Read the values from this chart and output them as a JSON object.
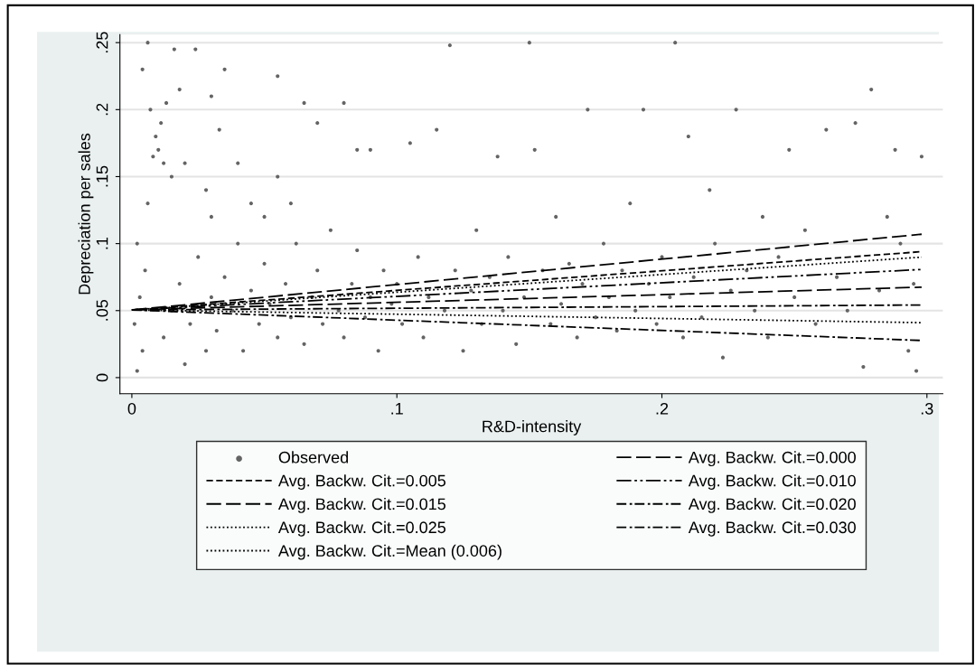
{
  "chart_data": {
    "type": "scatter",
    "xlabel": "R&D-intensity",
    "ylabel": "Depreciation per sales",
    "xlim": [
      -0.0045,
      0.306
    ],
    "ylim": [
      -0.012,
      0.256
    ],
    "xticks": [
      {
        "value": 0,
        "label": "0"
      },
      {
        "value": 0.1,
        "label": ".1"
      },
      {
        "value": 0.2,
        "label": ".2"
      },
      {
        "value": 0.3,
        "label": ".3"
      }
    ],
    "yticks": [
      {
        "value": 0,
        "label": "0"
      },
      {
        "value": 0.05,
        "label": ".05"
      },
      {
        "value": 0.1,
        "label": ".1"
      },
      {
        "value": 0.15,
        "label": ".15"
      },
      {
        "value": 0.2,
        "label": ".2"
      },
      {
        "value": 0.25,
        "label": ".25"
      }
    ],
    "grid": "y",
    "legend": "bottom",
    "series": [
      {
        "name": "Observed",
        "type": "scatter",
        "color": "#646464",
        "marker": "circle",
        "x": [
          0.002,
          0.004,
          0.001,
          0.003,
          0.005,
          0.002,
          0.006,
          0.008,
          0.01,
          0.012,
          0.009,
          0.011,
          0.007,
          0.004,
          0.006,
          0.013,
          0.015,
          0.018,
          0.02,
          0.016,
          0.024,
          0.028,
          0.03,
          0.033,
          0.03,
          0.012,
          0.015,
          0.018,
          0.02,
          0.022,
          0.025,
          0.028,
          0.03,
          0.032,
          0.035,
          0.038,
          0.04,
          0.042,
          0.045,
          0.048,
          0.05,
          0.052,
          0.055,
          0.058,
          0.06,
          0.062,
          0.065,
          0.068,
          0.07,
          0.072,
          0.075,
          0.078,
          0.08,
          0.083,
          0.085,
          0.088,
          0.09,
          0.093,
          0.095,
          0.098,
          0.045,
          0.05,
          0.055,
          0.06,
          0.065,
          0.07,
          0.04,
          0.035,
          0.055,
          0.08,
          0.085,
          0.09,
          0.1,
          0.102,
          0.105,
          0.108,
          0.11,
          0.112,
          0.115,
          0.118,
          0.12,
          0.122,
          0.125,
          0.128,
          0.13,
          0.132,
          0.135,
          0.138,
          0.14,
          0.142,
          0.145,
          0.148,
          0.15,
          0.152,
          0.155,
          0.158,
          0.16,
          0.162,
          0.165,
          0.168,
          0.17,
          0.172,
          0.175,
          0.178,
          0.18,
          0.183,
          0.185,
          0.188,
          0.19,
          0.193,
          0.195,
          0.198,
          0.2,
          0.203,
          0.205,
          0.208,
          0.21,
          0.212,
          0.215,
          0.218,
          0.22,
          0.223,
          0.226,
          0.228,
          0.232,
          0.235,
          0.238,
          0.24,
          0.244,
          0.248,
          0.25,
          0.254,
          0.258,
          0.262,
          0.266,
          0.27,
          0.273,
          0.276,
          0.279,
          0.282,
          0.285,
          0.288,
          0.29,
          0.293,
          0.296,
          0.298,
          0.295
        ],
        "values": [
          0.005,
          0.02,
          0.04,
          0.06,
          0.08,
          0.1,
          0.13,
          0.165,
          0.17,
          0.16,
          0.18,
          0.19,
          0.2,
          0.23,
          0.25,
          0.205,
          0.15,
          0.215,
          0.16,
          0.245,
          0.245,
          0.14,
          0.21,
          0.185,
          0.12,
          0.03,
          0.05,
          0.07,
          0.01,
          0.04,
          0.09,
          0.02,
          0.06,
          0.035,
          0.075,
          0.05,
          0.1,
          0.02,
          0.065,
          0.04,
          0.085,
          0.055,
          0.03,
          0.07,
          0.045,
          0.1,
          0.025,
          0.06,
          0.08,
          0.04,
          0.11,
          0.05,
          0.03,
          0.07,
          0.095,
          0.045,
          0.06,
          0.02,
          0.08,
          0.055,
          0.13,
          0.12,
          0.15,
          0.13,
          0.205,
          0.19,
          0.16,
          0.23,
          0.225,
          0.205,
          0.17,
          0.17,
          0.07,
          0.04,
          0.175,
          0.09,
          0.03,
          0.06,
          0.185,
          0.05,
          0.248,
          0.08,
          0.02,
          0.065,
          0.11,
          0.04,
          0.075,
          0.165,
          0.05,
          0.09,
          0.025,
          0.06,
          0.25,
          0.17,
          0.08,
          0.04,
          0.12,
          0.055,
          0.085,
          0.03,
          0.07,
          0.2,
          0.045,
          0.1,
          0.06,
          0.035,
          0.08,
          0.13,
          0.05,
          0.2,
          0.07,
          0.04,
          0.09,
          0.06,
          0.25,
          0.03,
          0.18,
          0.075,
          0.045,
          0.14,
          0.1,
          0.015,
          0.065,
          0.2,
          0.08,
          0.05,
          0.12,
          0.03,
          0.09,
          0.17,
          0.06,
          0.11,
          0.04,
          0.185,
          0.075,
          0.05,
          0.19,
          0.008,
          0.215,
          0.065,
          0.12,
          0.17,
          0.1,
          0.02,
          0.005,
          0.165,
          0.07
        ]
      },
      {
        "name": "Avg. Backw. Cit.=0.000",
        "type": "line",
        "color": "#000000",
        "line_style": "longdash",
        "x": [
          0,
          0.298
        ],
        "values": [
          0.0505,
          0.107
        ]
      },
      {
        "name": "Avg. Backw. Cit.=0.005",
        "type": "line",
        "color": "#000000",
        "line_style": "dashed",
        "x": [
          0,
          0.298
        ],
        "values": [
          0.0505,
          0.094
        ]
      },
      {
        "name": "Avg. Backw. Cit.=0.010",
        "type": "line",
        "color": "#000000",
        "line_style": "dashdotdot",
        "x": [
          0,
          0.298
        ],
        "values": [
          0.0505,
          0.0807
        ]
      },
      {
        "name": "Avg. Backw. Cit.=0.015",
        "type": "line",
        "color": "#000000",
        "line_style": "longdash",
        "x": [
          0,
          0.298
        ],
        "values": [
          0.0505,
          0.0675
        ]
      },
      {
        "name": "Avg. Backw. Cit.=0.020",
        "type": "line",
        "color": "#000000",
        "line_style": "dashdot",
        "x": [
          0,
          0.298
        ],
        "values": [
          0.0505,
          0.0542
        ]
      },
      {
        "name": "Avg. Backw. Cit.=0.025",
        "type": "line",
        "color": "#000000",
        "line_style": "dotted",
        "x": [
          0,
          0.298
        ],
        "values": [
          0.0505,
          0.041
        ]
      },
      {
        "name": "Avg. Backw. Cit.=0.030",
        "type": "line",
        "color": "#000000",
        "line_style": "dashdot",
        "x": [
          0,
          0.298
        ],
        "values": [
          0.0505,
          0.0277
        ]
      },
      {
        "name": "Avg. Backw. Cit.=Mean (0.006)",
        "type": "line",
        "color": "#000000",
        "line_style": "dotted",
        "x": [
          0,
          0.298
        ],
        "values": [
          0.0505,
          0.0899
        ]
      }
    ]
  }
}
